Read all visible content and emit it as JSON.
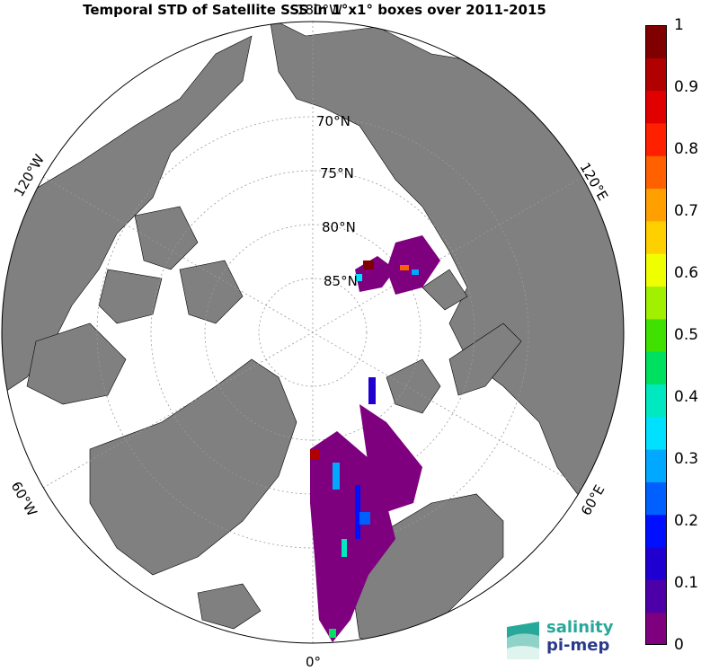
{
  "title": "Temporal STD of Satellite SSS in 1°x1° boxes over 2011-2015",
  "map": {
    "projection": "north polar stereographic",
    "latitude_labels": [
      "70°N",
      "75°N",
      "80°N",
      "85°N"
    ],
    "longitude_labels": {
      "top": "180°W",
      "left": "120°W",
      "right": "120°E",
      "lower_left": "60°W",
      "lower_right": "60°E",
      "bottom": "0°"
    },
    "land_color": "#808080",
    "ocean_color": "#ffffff"
  },
  "colorbar": {
    "min": 0,
    "max": 1,
    "tick_labels": [
      "1",
      "0.9",
      "0.8",
      "0.7",
      "0.6",
      "0.5",
      "0.4",
      "0.3",
      "0.2",
      "0.1",
      "0"
    ],
    "colors_bottom_to_top": [
      "#7e007e",
      "#4d00a8",
      "#2000d0",
      "#0010ff",
      "#0060ff",
      "#00a8ff",
      "#00e0ff",
      "#00e8c0",
      "#00e060",
      "#40e000",
      "#a0f000",
      "#f0ff00",
      "#ffd000",
      "#ffa000",
      "#ff6000",
      "#ff2000",
      "#e00000",
      "#b00000",
      "#800000"
    ]
  },
  "logo": {
    "line1": "salinity",
    "line2": "pi-mep"
  }
}
